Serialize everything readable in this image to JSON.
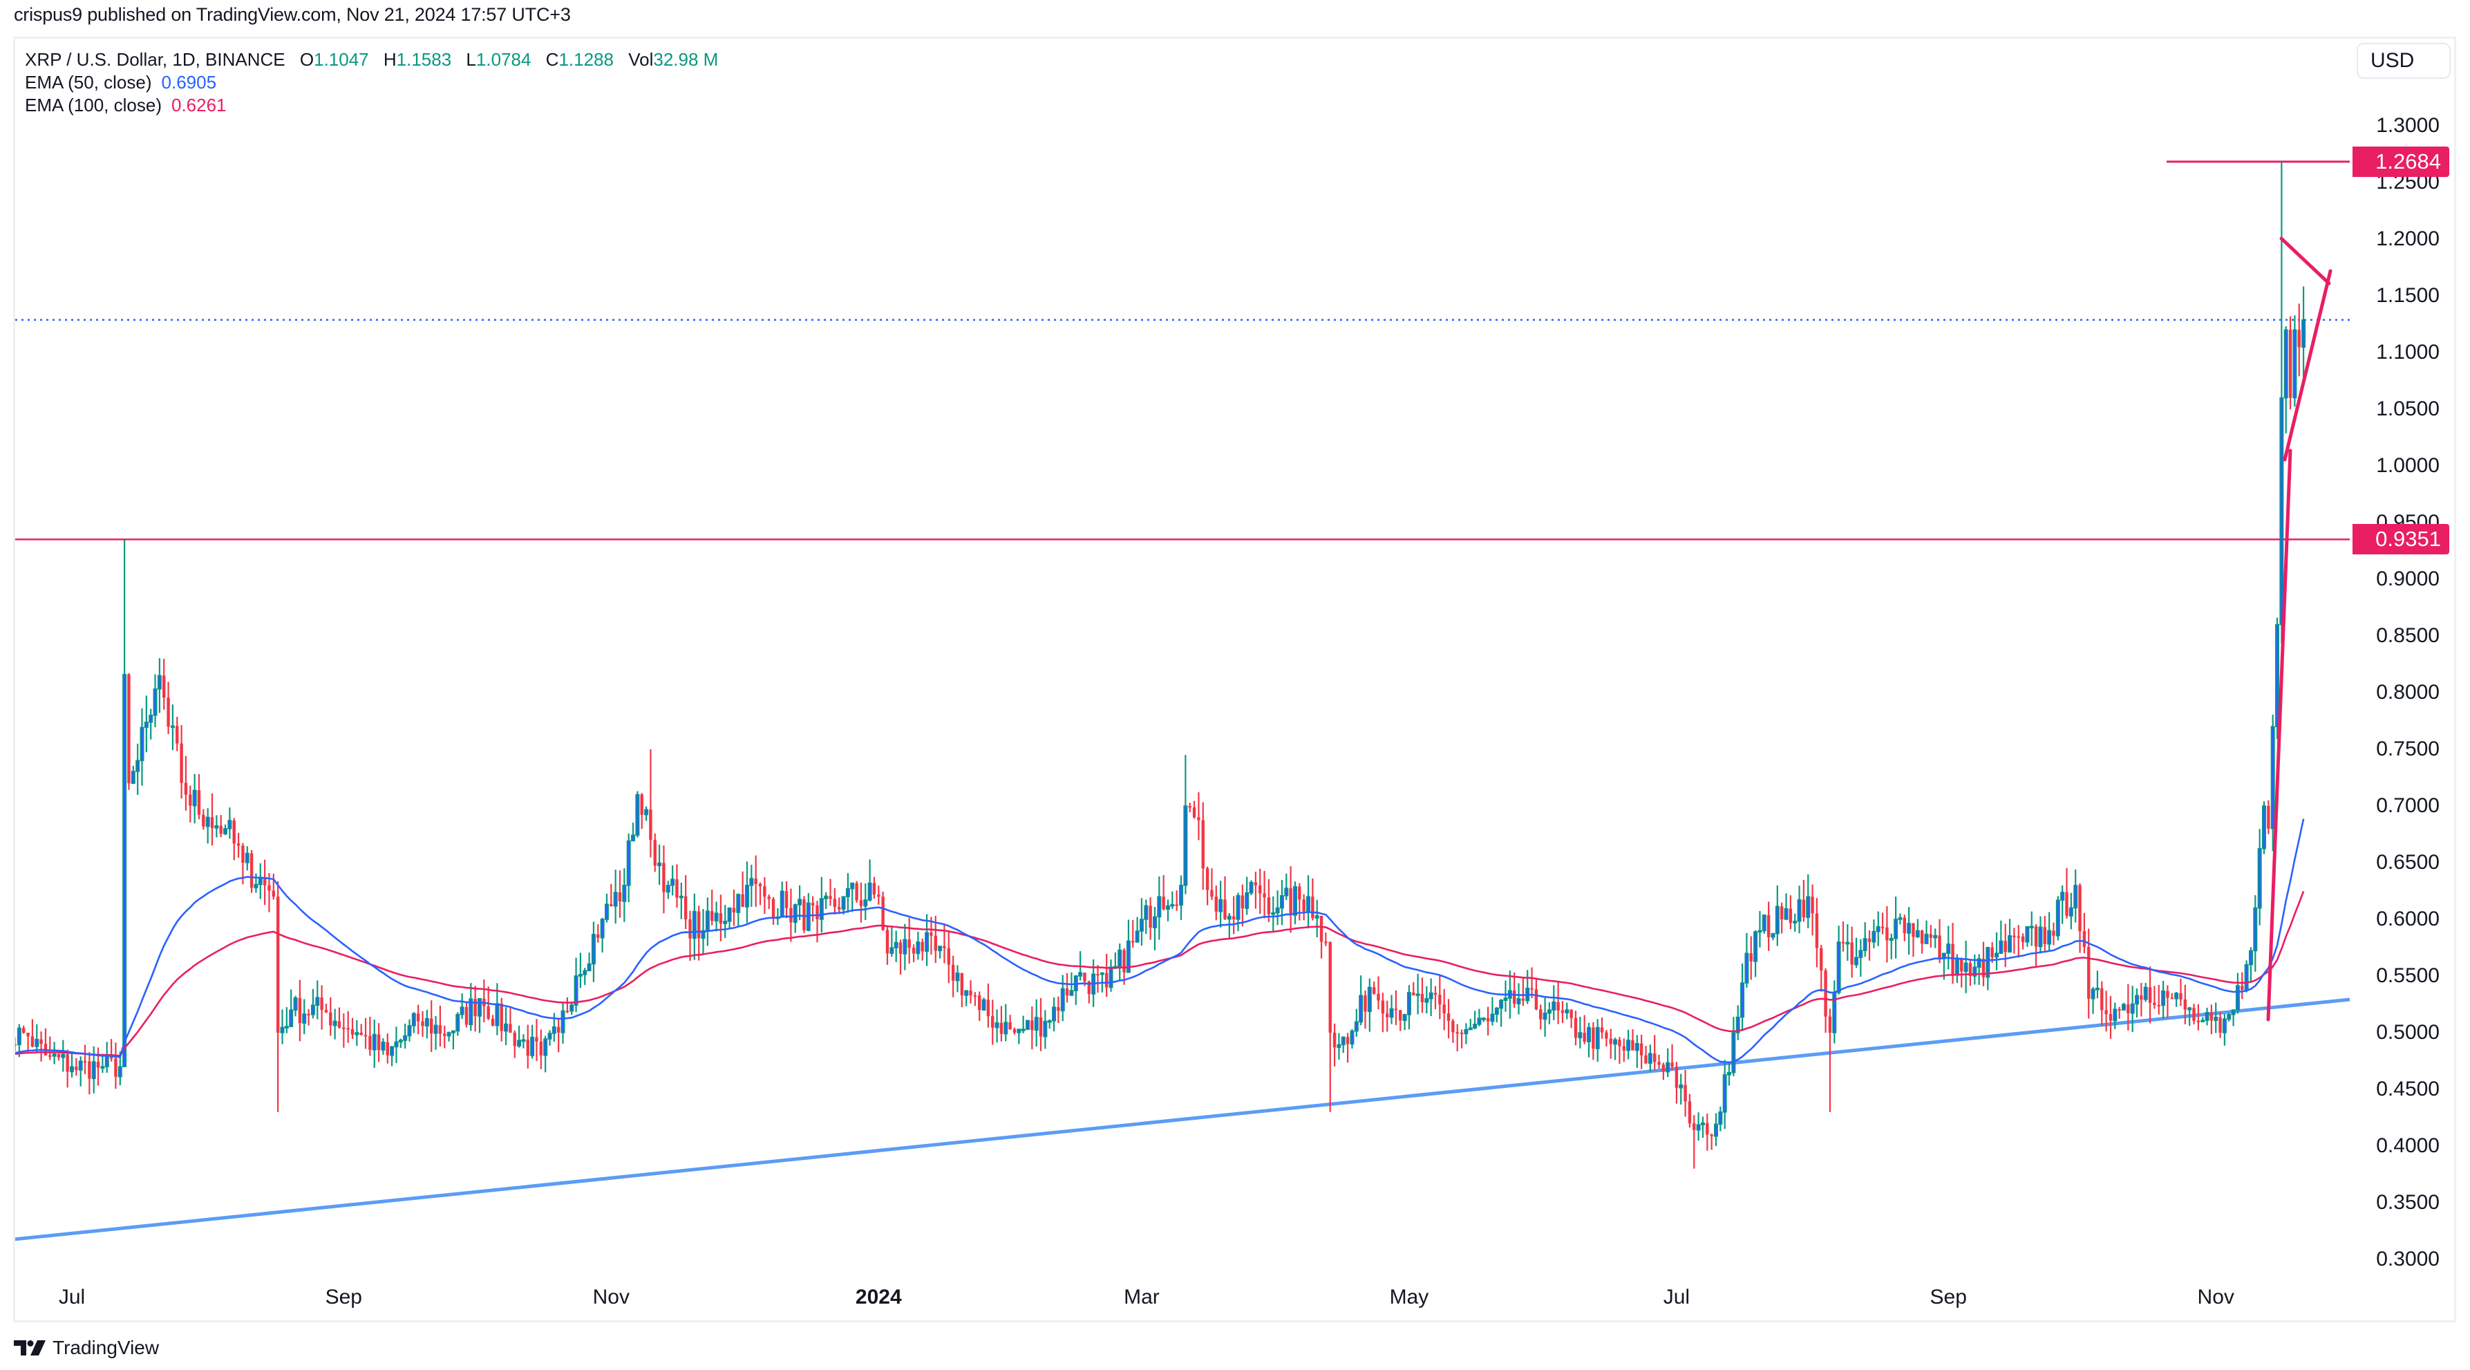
{
  "header": {
    "publish_line": "crispus9 published on TradingView.com, Nov 21, 2024 17:57 UTC+3"
  },
  "legend": {
    "symbol": "XRP / U.S. Dollar, 1D, BINANCE",
    "o_label": "O",
    "o_value": "1.1047",
    "h_label": "H",
    "h_value": "1.1583",
    "l_label": "L",
    "l_value": "1.0784",
    "c_label": "C",
    "c_value": "1.1288",
    "vol_label": "Vol",
    "vol_value": "32.98 M",
    "ema50_label": "EMA (50, close)",
    "ema50_value": "0.6905",
    "ema100_label": "EMA (100, close)",
    "ema100_value": "0.6261"
  },
  "currency_button": "USD",
  "footer": {
    "brand": "TradingView"
  },
  "colors": {
    "up": "#089981",
    "up_fill": "#2962ff",
    "down": "#f23645",
    "ema50": "#2962ff",
    "ema100": "#e91e63",
    "hline": "#e91e63",
    "trendline": "#5b9cf6",
    "pennant": "#e91e63",
    "last_price_line": "#2962ff"
  },
  "chart_data": {
    "type": "candlestick",
    "title": "XRP / U.S. Dollar, 1D, BINANCE",
    "xlabel": "",
    "ylabel": "USD",
    "ylim": [
      0.27,
      1.33
    ],
    "yscale": "linear",
    "y_ticks": [
      "1.3000",
      "1.2500",
      "1.2000",
      "1.1500",
      "1.1000",
      "1.0500",
      "1.0000",
      "0.9500",
      "0.9000",
      "0.8500",
      "0.8000",
      "0.7500",
      "0.7000",
      "0.6500",
      "0.6000",
      "0.5500",
      "0.5000",
      "0.4500",
      "0.4000",
      "0.3500",
      "0.3000"
    ],
    "x_ticks": [
      {
        "label": "Jul",
        "date": "2023-07-01",
        "bold": false
      },
      {
        "label": "Sep",
        "date": "2023-09-01",
        "bold": false
      },
      {
        "label": "Nov",
        "date": "2023-11-01",
        "bold": false
      },
      {
        "label": "2024",
        "date": "2024-01-01",
        "bold": true
      },
      {
        "label": "Mar",
        "date": "2024-03-01",
        "bold": false
      },
      {
        "label": "May",
        "date": "2024-05-01",
        "bold": false
      },
      {
        "label": "Jul",
        "date": "2024-07-01",
        "bold": false
      },
      {
        "label": "Sep",
        "date": "2024-09-01",
        "bold": false
      },
      {
        "label": "Nov",
        "date": "2024-11-01",
        "bold": false
      }
    ],
    "grid": false,
    "last_bar": {
      "date": "2024-11-21",
      "open": 1.1047,
      "high": 1.1583,
      "low": 1.0784,
      "close": 1.1288,
      "volume": "32.98M"
    },
    "indicators": [
      {
        "name": "EMA (50, close)",
        "last": 0.6905,
        "color": "#2962ff"
      },
      {
        "name": "EMA (100, close)",
        "last": 0.6261,
        "color": "#e91e63"
      }
    ],
    "horizontal_lines": [
      {
        "price": 1.2684,
        "label": "1.2684",
        "from_date": "2024-11-05"
      },
      {
        "price": 0.9351,
        "label": "0.9351",
        "from_date": "2023-06-14"
      }
    ],
    "trendline": {
      "from": {
        "date": "2023-06-14",
        "price": 0.322
      },
      "to": {
        "date": "2024-12-14",
        "price": 0.4345
      }
    },
    "pennant": {
      "pole": {
        "from": {
          "date": "2024-11-12",
          "price": 0.513
        },
        "to": {
          "date": "2024-11-17",
          "price": 1.005
        }
      },
      "upper": {
        "from": {
          "date": "2024-11-16",
          "price": 1.198
        },
        "to": {
          "date": "2024-11-27",
          "price": 1.158
        }
      },
      "lower": {
        "from": {
          "date": "2024-11-17",
          "price": 1.005
        },
        "to": {
          "date": "2024-11-27",
          "price": 1.17
        }
      }
    },
    "start_date": "2023-06-14",
    "end_date": "2024-11-21",
    "close_anchors": [
      [
        "2023-06-14",
        0.49
      ],
      [
        "2023-06-20",
        0.5
      ],
      [
        "2023-06-25",
        0.48
      ],
      [
        "2023-07-01",
        0.47
      ],
      [
        "2023-07-08",
        0.47
      ],
      [
        "2023-07-12",
        0.47
      ],
      [
        "2023-07-13",
        0.816
      ],
      [
        "2023-07-14",
        0.72
      ],
      [
        "2023-07-16",
        0.74
      ],
      [
        "2023-07-19",
        0.78
      ],
      [
        "2023-07-21",
        0.815
      ],
      [
        "2023-07-23",
        0.77
      ],
      [
        "2023-07-27",
        0.71
      ],
      [
        "2023-08-01",
        0.69
      ],
      [
        "2023-08-05",
        0.68
      ],
      [
        "2023-08-09",
        0.65
      ],
      [
        "2023-08-14",
        0.63
      ],
      [
        "2023-08-16",
        0.62
      ],
      [
        "2023-08-17",
        0.5
      ],
      [
        "2023-08-20",
        0.52
      ],
      [
        "2023-08-27",
        0.52
      ],
      [
        "2023-09-04",
        0.5
      ],
      [
        "2023-09-11",
        0.48
      ],
      [
        "2023-09-18",
        0.51
      ],
      [
        "2023-09-25",
        0.5
      ],
      [
        "2023-10-02",
        0.53
      ],
      [
        "2023-10-09",
        0.5
      ],
      [
        "2023-10-16",
        0.48
      ],
      [
        "2023-10-20",
        0.5
      ],
      [
        "2023-10-24",
        0.55
      ],
      [
        "2023-10-30",
        0.6
      ],
      [
        "2023-11-04",
        0.63
      ],
      [
        "2023-11-07",
        0.71
      ],
      [
        "2023-11-10",
        0.67
      ],
      [
        "2023-11-14",
        0.63
      ],
      [
        "2023-11-18",
        0.6
      ],
      [
        "2023-11-22",
        0.59
      ],
      [
        "2023-11-28",
        0.61
      ],
      [
        "2023-12-02",
        0.63
      ],
      [
        "2023-12-06",
        0.62
      ],
      [
        "2023-12-11",
        0.61
      ],
      [
        "2023-12-18",
        0.6
      ],
      [
        "2023-12-24",
        0.62
      ],
      [
        "2024-01-01",
        0.62
      ],
      [
        "2024-01-03",
        0.57
      ],
      [
        "2024-01-10",
        0.58
      ],
      [
        "2024-01-17",
        0.56
      ],
      [
        "2024-01-24",
        0.52
      ],
      [
        "2024-02-01",
        0.5
      ],
      [
        "2024-02-08",
        0.51
      ],
      [
        "2024-02-15",
        0.55
      ],
      [
        "2024-02-22",
        0.54
      ],
      [
        "2024-02-28",
        0.58
      ],
      [
        "2024-03-05",
        0.62
      ],
      [
        "2024-03-10",
        0.63
      ],
      [
        "2024-03-11",
        0.7
      ],
      [
        "2024-03-13",
        0.69
      ],
      [
        "2024-03-17",
        0.62
      ],
      [
        "2024-03-22",
        0.6
      ],
      [
        "2024-03-27",
        0.63
      ],
      [
        "2024-04-01",
        0.61
      ],
      [
        "2024-04-08",
        0.62
      ],
      [
        "2024-04-12",
        0.58
      ],
      [
        "2024-04-13",
        0.5
      ],
      [
        "2024-04-17",
        0.49
      ],
      [
        "2024-04-22",
        0.54
      ],
      [
        "2024-04-28",
        0.52
      ],
      [
        "2024-05-05",
        0.53
      ],
      [
        "2024-05-12",
        0.5
      ],
      [
        "2024-05-19",
        0.51
      ],
      [
        "2024-05-26",
        0.53
      ],
      [
        "2024-06-02",
        0.52
      ],
      [
        "2024-06-09",
        0.5
      ],
      [
        "2024-06-16",
        0.49
      ],
      [
        "2024-06-23",
        0.48
      ],
      [
        "2024-06-30",
        0.47
      ],
      [
        "2024-07-04",
        0.42
      ],
      [
        "2024-07-08",
        0.41
      ],
      [
        "2024-07-11",
        0.43
      ],
      [
        "2024-07-14",
        0.5
      ],
      [
        "2024-07-17",
        0.57
      ],
      [
        "2024-07-20",
        0.59
      ],
      [
        "2024-07-25",
        0.6
      ],
      [
        "2024-07-31",
        0.62
      ],
      [
        "2024-08-05",
        0.5
      ],
      [
        "2024-08-07",
        0.58
      ],
      [
        "2024-08-10",
        0.56
      ],
      [
        "2024-08-14",
        0.58
      ],
      [
        "2024-08-20",
        0.6
      ],
      [
        "2024-08-25",
        0.59
      ],
      [
        "2024-08-31",
        0.57
      ],
      [
        "2024-09-06",
        0.55
      ],
      [
        "2024-09-12",
        0.57
      ],
      [
        "2024-09-18",
        0.58
      ],
      [
        "2024-09-24",
        0.59
      ],
      [
        "2024-09-30",
        0.63
      ],
      [
        "2024-10-03",
        0.53
      ],
      [
        "2024-10-10",
        0.52
      ],
      [
        "2024-10-16",
        0.54
      ],
      [
        "2024-10-22",
        0.53
      ],
      [
        "2024-10-28",
        0.51
      ],
      [
        "2024-11-02",
        0.5
      ],
      [
        "2024-11-05",
        0.52
      ],
      [
        "2024-11-08",
        0.56
      ],
      [
        "2024-11-10",
        0.61
      ],
      [
        "2024-11-12",
        0.7
      ],
      [
        "2024-11-13",
        0.68
      ],
      [
        "2024-11-14",
        0.77
      ],
      [
        "2024-11-15",
        0.86
      ],
      [
        "2024-11-16",
        1.06
      ],
      [
        "2024-11-17",
        1.12
      ],
      [
        "2024-11-18",
        1.06
      ],
      [
        "2024-11-19",
        1.12
      ],
      [
        "2024-11-20",
        1.1047
      ],
      [
        "2024-11-21",
        1.1288
      ]
    ]
  }
}
